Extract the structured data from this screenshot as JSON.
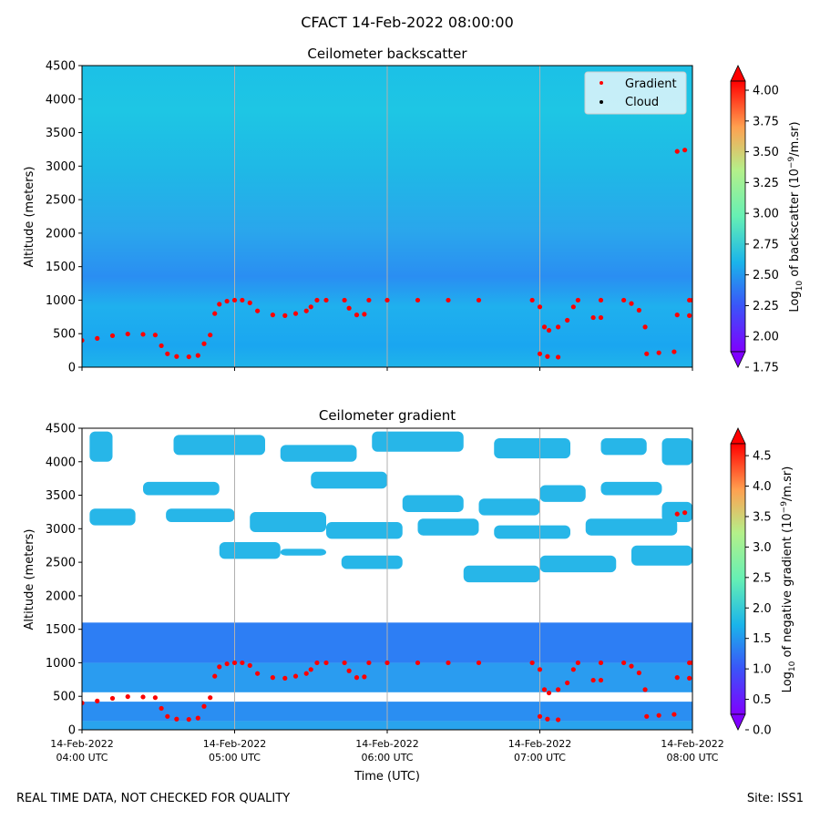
{
  "suptitle": "CFACT 14-Feb-2022 08:00:00",
  "footer": {
    "left": "REAL TIME DATA, NOT CHECKED FOR QUALITY",
    "right": "Site: ISS1"
  },
  "time_ticks": [
    {
      "line1": "14-Feb-2022",
      "line2": "04:00 UTC"
    },
    {
      "line1": "14-Feb-2022",
      "line2": "05:00 UTC"
    },
    {
      "line1": "14-Feb-2022",
      "line2": "06:00 UTC"
    },
    {
      "line1": "14-Feb-2022",
      "line2": "07:00 UTC"
    },
    {
      "line1": "14-Feb-2022",
      "line2": "08:00 UTC"
    }
  ],
  "chart_data": [
    {
      "type": "heatmap",
      "title": "Ceilometer backscatter",
      "xlabel": "",
      "ylabel": "Altitude (meters)",
      "xlim_hours": [
        4,
        8
      ],
      "ylim": [
        0,
        4500
      ],
      "yticks": [
        0,
        500,
        1000,
        1500,
        2000,
        2500,
        3000,
        3500,
        4000,
        4500
      ],
      "grid_x": true,
      "colorbar": {
        "label": "Log10 of backscatter (10^-9/m.sr)",
        "range": [
          1.75,
          4.2
        ],
        "ticks": [
          "1.75",
          "2.00",
          "2.25",
          "2.50",
          "2.75",
          "3.00",
          "3.25",
          "3.50",
          "3.75",
          "4.00"
        ]
      },
      "legend": {
        "position": "top-right",
        "entries": [
          {
            "label": "Gradient",
            "color": "#ff0000"
          },
          {
            "label": "Cloud",
            "color": "#000000"
          }
        ]
      },
      "field_description": "backscatter roughly 2.2 near surface, 2.35-2.45 in 1000-2000 m band, about 2.4 above"
    },
    {
      "type": "heatmap",
      "title": "Ceilometer gradient",
      "xlabel": "Time (UTC)",
      "ylabel": "Altitude (meters)",
      "xlim_hours": [
        4,
        8
      ],
      "ylim": [
        0,
        4500
      ],
      "yticks": [
        0,
        500,
        1000,
        1500,
        2000,
        2500,
        3000,
        3500,
        4000,
        4500
      ],
      "grid_x": true,
      "colorbar": {
        "label": "Log10 of negative gradient (10^-9/m.sr)",
        "range": [
          0.0,
          4.95
        ],
        "ticks": [
          "0.0",
          "0.5",
          "1.0",
          "1.5",
          "2.0",
          "2.5",
          "3.0",
          "3.5",
          "4.0",
          "4.5"
        ]
      }
    }
  ],
  "gradient_series": {
    "name": "Gradient",
    "color": "#ff0000",
    "points": [
      [
        4.0,
        400
      ],
      [
        4.1,
        430
      ],
      [
        4.2,
        470
      ],
      [
        4.3,
        495
      ],
      [
        4.4,
        490
      ],
      [
        4.48,
        480
      ],
      [
        4.52,
        320
      ],
      [
        4.56,
        200
      ],
      [
        4.62,
        160
      ],
      [
        4.7,
        155
      ],
      [
        4.76,
        175
      ],
      [
        4.8,
        350
      ],
      [
        4.84,
        480
      ],
      [
        4.87,
        800
      ],
      [
        4.9,
        940
      ],
      [
        4.95,
        985
      ],
      [
        5.0,
        1000
      ],
      [
        5.05,
        1000
      ],
      [
        5.1,
        960
      ],
      [
        5.15,
        840
      ],
      [
        5.25,
        780
      ],
      [
        5.33,
        770
      ],
      [
        5.4,
        800
      ],
      [
        5.47,
        840
      ],
      [
        5.5,
        900
      ],
      [
        5.54,
        1000
      ],
      [
        5.6,
        1000
      ],
      [
        5.72,
        1000
      ],
      [
        5.75,
        880
      ],
      [
        5.8,
        780
      ],
      [
        5.85,
        790
      ],
      [
        5.88,
        1000
      ],
      [
        6.0,
        1000
      ],
      [
        6.2,
        1000
      ],
      [
        6.4,
        1000
      ],
      [
        6.6,
        1000
      ],
      [
        6.95,
        1000
      ],
      [
        7.0,
        900
      ],
      [
        7.03,
        600
      ],
      [
        7.06,
        550
      ],
      [
        7.12,
        600
      ],
      [
        7.18,
        700
      ],
      [
        7.22,
        900
      ],
      [
        7.25,
        1000
      ],
      [
        7.4,
        1000
      ],
      [
        7.55,
        1000
      ],
      [
        7.6,
        950
      ],
      [
        7.65,
        850
      ],
      [
        7.69,
        600
      ],
      [
        7.7,
        200
      ],
      [
        7.78,
        215
      ],
      [
        7.88,
        230
      ],
      [
        7.9,
        780
      ],
      [
        7.98,
        770
      ],
      [
        7.9,
        3220
      ],
      [
        7.95,
        3240
      ],
      [
        7.98,
        1000
      ],
      [
        8.0,
        1000
      ],
      [
        7.35,
        740
      ],
      [
        7.4,
        740
      ],
      [
        7.0,
        200
      ],
      [
        7.05,
        160
      ],
      [
        7.12,
        150
      ]
    ]
  }
}
